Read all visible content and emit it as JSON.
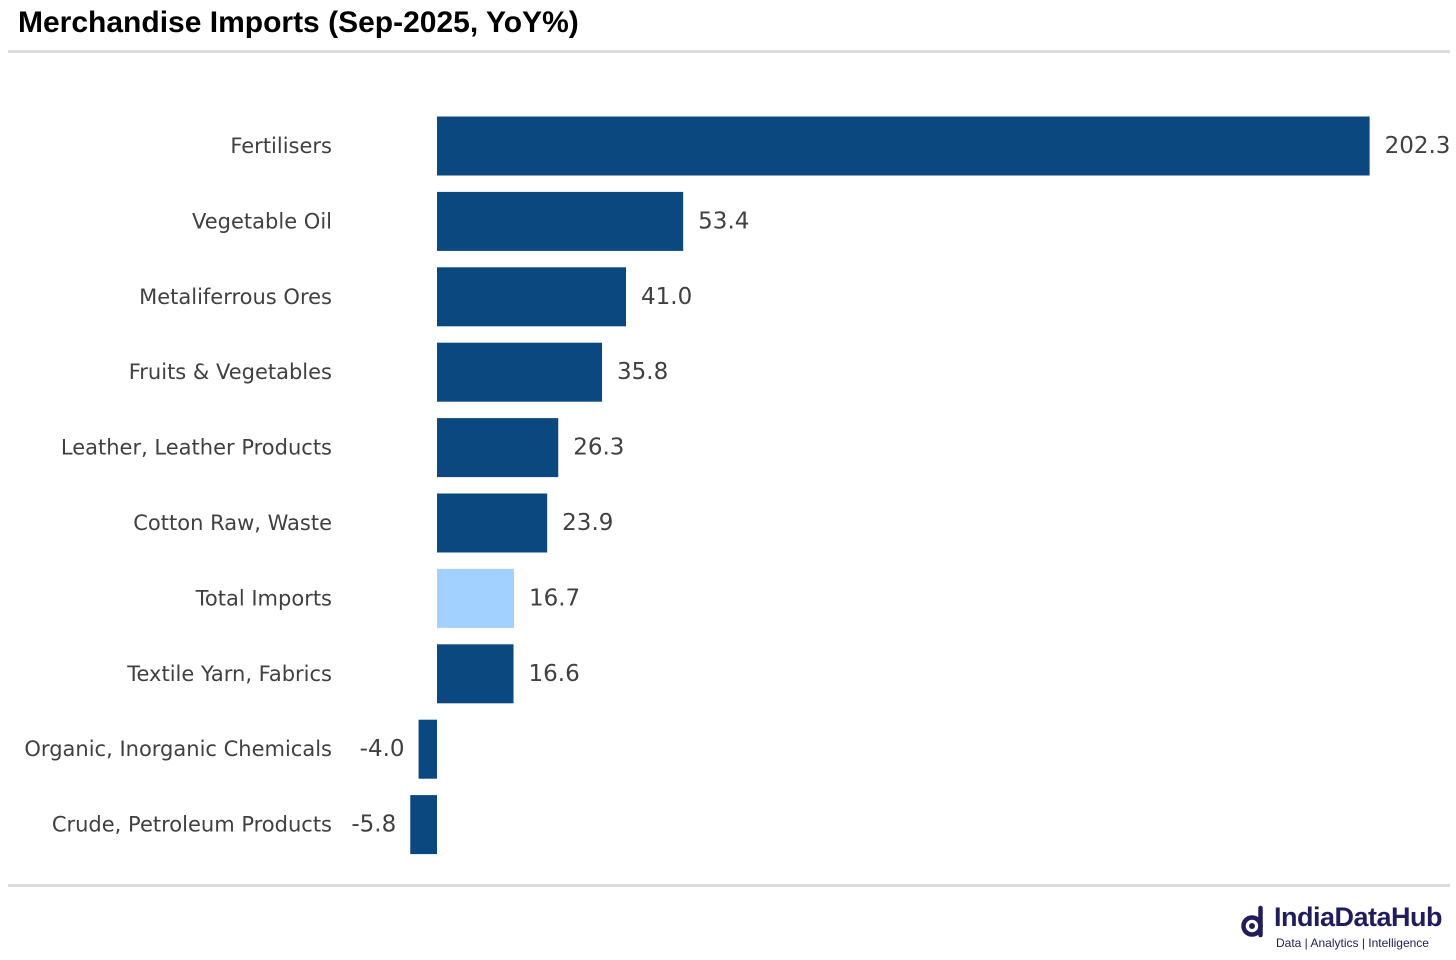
{
  "chart_data": {
    "type": "bar",
    "orientation": "horizontal",
    "title": "Merchandise Imports (Sep-2025, YoY%)",
    "categories": [
      "Fertilisers",
      "Vegetable Oil",
      "Metaliferrous Ores",
      "Fruits & Vegetables",
      "Leather, Leather Products",
      "Cotton Raw, Waste",
      "Total Imports",
      "Textile Yarn, Fabrics",
      "Organic, Inorganic Chemicals",
      "Crude, Petroleum Products"
    ],
    "values": [
      202.3,
      53.4,
      41.0,
      35.8,
      26.3,
      23.9,
      16.7,
      16.6,
      -4.0,
      -5.8
    ],
    "value_labels": [
      "202.3",
      "53.4",
      "41.0",
      "35.8",
      "26.3",
      "23.9",
      "16.7",
      "16.6",
      "-4.0",
      "-5.8"
    ],
    "highlight_category": "Total Imports",
    "colors": {
      "bar": "#0b4880",
      "highlight": "#a2d0ff",
      "label": "#404040"
    },
    "xlabel": "",
    "ylabel": "",
    "grid": false,
    "legend": "none"
  },
  "branding": {
    "name": "IndiaDataHub",
    "tagline": "Data | Analytics | Intelligence",
    "color": "#1f1d5c"
  }
}
